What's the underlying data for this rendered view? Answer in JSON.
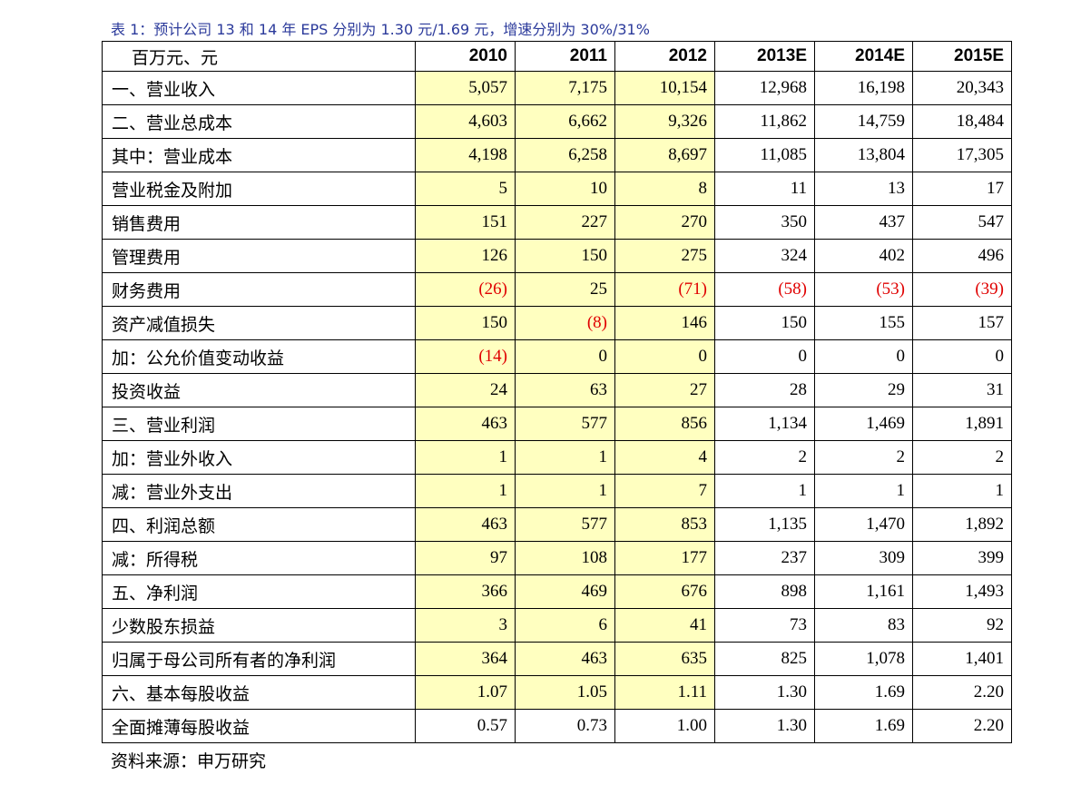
{
  "title": "表 1：预计公司 13 和 14 年 EPS 分别为 1.30 元/1.69 元，增速分别为 30%/31%",
  "table": {
    "header": [
      "百万元、元",
      "2010",
      "2011",
      "2012",
      "2013E",
      "2014E",
      "2015E"
    ],
    "rows": [
      [
        "一、营业收入",
        "5,057",
        "7,175",
        "10,154",
        "12,968",
        "16,198",
        "20,343"
      ],
      [
        "二、营业总成本",
        "4,603",
        "6,662",
        "9,326",
        "11,862",
        "14,759",
        "18,484"
      ],
      [
        "其中：营业成本",
        "4,198",
        "6,258",
        "8,697",
        "11,085",
        "13,804",
        "17,305"
      ],
      [
        "营业税金及附加",
        "5",
        "10",
        "8",
        "11",
        "13",
        "17"
      ],
      [
        "销售费用",
        "151",
        "227",
        "270",
        "350",
        "437",
        "547"
      ],
      [
        "管理费用",
        "126",
        "150",
        "275",
        "324",
        "402",
        "496"
      ],
      [
        "财务费用",
        "(26)",
        "25",
        "(71)",
        "(58)",
        "(53)",
        "(39)"
      ],
      [
        "资产减值损失",
        "150",
        "(8)",
        "146",
        "150",
        "155",
        "157"
      ],
      [
        "加：公允价值变动收益",
        "(14)",
        "0",
        "0",
        "0",
        "0",
        "0"
      ],
      [
        "投资收益",
        "24",
        "63",
        "27",
        "28",
        "29",
        "31"
      ],
      [
        "三、营业利润",
        "463",
        "577",
        "856",
        "1,134",
        "1,469",
        "1,891"
      ],
      [
        "加：营业外收入",
        "1",
        "1",
        "4",
        "2",
        "2",
        "2"
      ],
      [
        "减：营业外支出",
        "1",
        "1",
        "7",
        "1",
        "1",
        "1"
      ],
      [
        "四、利润总额",
        "463",
        "577",
        "853",
        "1,135",
        "1,470",
        "1,892"
      ],
      [
        "减：所得税",
        "97",
        "108",
        "177",
        "237",
        "309",
        "399"
      ],
      [
        "五、净利润",
        "366",
        "469",
        "676",
        "898",
        "1,161",
        "1,493"
      ],
      [
        "少数股东损益",
        "3",
        "6",
        "41",
        "73",
        "83",
        "92"
      ],
      [
        "归属于母公司所有者的净利润",
        "364",
        "463",
        "635",
        "825",
        "1,078",
        "1,401"
      ],
      [
        "六、基本每股收益",
        "1.07",
        "1.05",
        "1.11",
        "1.30",
        "1.69",
        "2.20"
      ],
      [
        "全面摊薄每股收益",
        "0.57",
        "0.73",
        "1.00",
        "1.30",
        "1.69",
        "2.20"
      ]
    ]
  },
  "source": "资料来源：申万研究"
}
